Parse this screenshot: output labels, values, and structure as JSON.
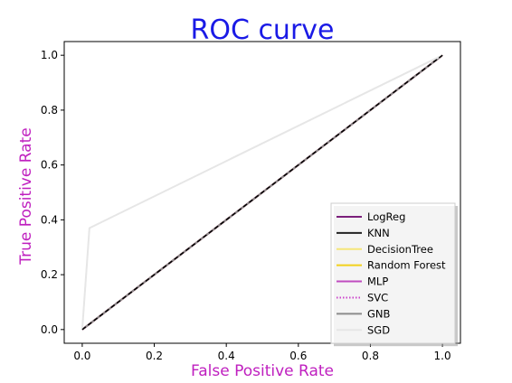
{
  "chart_data": {
    "type": "line",
    "title": "ROC curve",
    "xlabel": "False Positive Rate",
    "ylabel": "True Positive Rate",
    "xlim": [
      -0.05,
      1.05
    ],
    "ylim": [
      -0.05,
      1.05
    ],
    "xticks": [
      "0.0",
      "0.2",
      "0.4",
      "0.6",
      "0.8",
      "1.0"
    ],
    "yticks": [
      "0.0",
      "0.2",
      "0.4",
      "0.6",
      "0.8",
      "1.0"
    ],
    "grid": false,
    "legend_position": "lower-right",
    "colors": {
      "title": "#1a1ae6",
      "axis_labels": "#bf1fbf",
      "diagonal": "#000000"
    },
    "series": [
      {
        "name": "LogReg",
        "color": "#7b1f7b",
        "style": "solid",
        "x": [
          0,
          1
        ],
        "y": [
          0,
          1
        ]
      },
      {
        "name": "KNN",
        "color": "#222222",
        "style": "solid",
        "x": [
          0,
          1
        ],
        "y": [
          0,
          1
        ]
      },
      {
        "name": "DecisionTree",
        "color": "#f5e67a",
        "style": "solid",
        "x": [
          0,
          1
        ],
        "y": [
          0,
          1
        ]
      },
      {
        "name": "Random Forest",
        "color": "#f2d11c",
        "style": "solid",
        "x": [
          0,
          1
        ],
        "y": [
          0,
          1
        ]
      },
      {
        "name": "MLP",
        "color": "#c04cc0",
        "style": "solid",
        "x": [
          0,
          1
        ],
        "y": [
          0,
          1
        ]
      },
      {
        "name": "SVC",
        "color": "#cc44cc",
        "style": "dotted",
        "x": [
          0,
          1
        ],
        "y": [
          0,
          1
        ]
      },
      {
        "name": "GNB",
        "color": "#8c8c8c",
        "style": "solid",
        "x": [
          0,
          1
        ],
        "y": [
          0,
          1
        ]
      },
      {
        "name": "SGD",
        "color": "#e6e6e6",
        "style": "solid",
        "x": [
          0,
          0.02,
          1
        ],
        "y": [
          0,
          0.37,
          1
        ]
      }
    ],
    "reference_line": {
      "x": [
        0,
        1
      ],
      "y": [
        0,
        1
      ],
      "color": "#000000",
      "style": "dashed"
    }
  }
}
